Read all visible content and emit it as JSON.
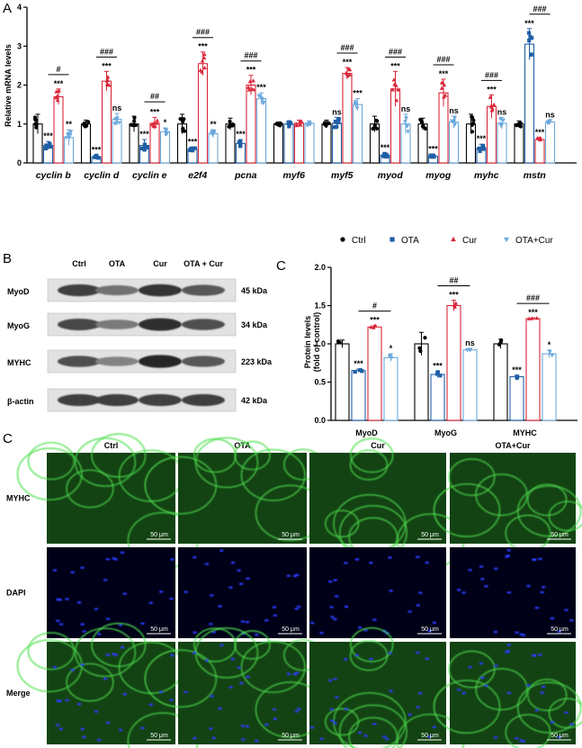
{
  "panels": {
    "A": "A",
    "B": "B",
    "C1": "C",
    "C2": "C"
  },
  "colors": {
    "Ctrl": "#000000",
    "OTA": "#1f5fa6",
    "Cur": "#d9273a",
    "OTA+Cur": "#6aa8dc"
  },
  "groups": [
    "Ctrl",
    "OTA",
    "Cur",
    "OTA+Cur"
  ],
  "legend": {
    "items": [
      "Ctrl",
      "OTA",
      "Cur",
      "OTA+Cur"
    ],
    "markers": [
      "circle",
      "square",
      "triangle",
      "triangle-down"
    ]
  },
  "chart_data": [
    {
      "type": "bar",
      "panel": "A",
      "ylabel": "Relative mRNA levels",
      "ylim": [
        0,
        4
      ],
      "yticks": [
        "0",
        "1",
        "2",
        "3",
        "4"
      ],
      "categories": [
        "cyclin b",
        "cyclin d",
        "cyclin e",
        "e2f4",
        "pcna",
        "myf6",
        "myf5",
        "myod",
        "myog",
        "myhc",
        "mstn"
      ],
      "series": [
        {
          "name": "Ctrl",
          "values": [
            1.0,
            1.0,
            1.0,
            1.0,
            1.0,
            1.0,
            1.0,
            1.0,
            1.0,
            1.0,
            1.0
          ]
        },
        {
          "name": "OTA",
          "values": [
            0.45,
            0.15,
            0.45,
            0.35,
            0.5,
            1.0,
            1.02,
            0.2,
            0.17,
            0.38,
            3.05
          ]
        },
        {
          "name": "Cur",
          "values": [
            1.7,
            2.1,
            1.02,
            2.55,
            2.0,
            1.02,
            2.3,
            1.9,
            1.8,
            1.45,
            0.6
          ]
        },
        {
          "name": "OTA+Cur",
          "values": [
            0.65,
            1.12,
            0.8,
            0.75,
            1.65,
            1.02,
            1.5,
            1.0,
            1.05,
            1.02,
            1.05
          ]
        }
      ],
      "errors": [
        [
          0.25,
          0.1,
          0.2,
          0.25,
          0.15,
          0.05,
          0.1,
          0.2,
          0.15,
          0.25,
          0.08
        ],
        [
          0.1,
          0.05,
          0.15,
          0.05,
          0.1,
          0.08,
          0.15,
          0.05,
          0.05,
          0.1,
          0.4
        ],
        [
          0.2,
          0.25,
          0.15,
          0.3,
          0.25,
          0.08,
          0.15,
          0.45,
          0.35,
          0.3,
          0.05
        ],
        [
          0.2,
          0.15,
          0.1,
          0.1,
          0.15,
          0.06,
          0.15,
          0.25,
          0.15,
          0.15,
          0.05
        ]
      ],
      "annotations": {
        "OTA": [
          "***",
          "***",
          "***",
          "***",
          "***",
          "",
          "ns",
          "***",
          "***",
          "***",
          "***"
        ],
        "Cur": [
          "***",
          "***",
          "***",
          "***",
          "***",
          "",
          "***",
          "***",
          "***",
          "***",
          "***"
        ],
        "OTA+Cur": [
          "**",
          "ns",
          "*",
          "**",
          "***",
          "",
          "***",
          "ns",
          "ns",
          "ns",
          "ns"
        ],
        "hash": [
          "#",
          "###",
          "##",
          "###",
          "###",
          "",
          "###",
          "###",
          "###",
          "###",
          "###"
        ]
      }
    },
    {
      "type": "bar",
      "panel": "C",
      "ylabel": "Protein levels",
      "ylabel2": "(fold of control)",
      "ylim": [
        0,
        2
      ],
      "yticks": [
        "0.0",
        "0.5",
        "1.0",
        "1.5",
        "2.0"
      ],
      "categories": [
        "MyoD",
        "MyoG",
        "MYHC"
      ],
      "series": [
        {
          "name": "Ctrl",
          "values": [
            1.0,
            1.0,
            1.0
          ]
        },
        {
          "name": "OTA",
          "values": [
            0.65,
            0.6,
            0.57
          ]
        },
        {
          "name": "Cur",
          "values": [
            1.22,
            1.5,
            1.33
          ]
        },
        {
          "name": "OTA+Cur",
          "values": [
            0.82,
            0.92,
            0.87
          ]
        }
      ],
      "errors": [
        [
          0.05,
          0.15,
          0.06
        ],
        [
          0.02,
          0.04,
          0.02
        ],
        [
          0.02,
          0.07,
          0.01
        ],
        [
          0.05,
          0.02,
          0.05
        ]
      ],
      "annotations": {
        "OTA": [
          "***",
          "***",
          "***"
        ],
        "Cur": [
          "***",
          "***",
          "***"
        ],
        "OTA+Cur": [
          "*",
          "ns",
          "*"
        ],
        "hash": [
          "#",
          "##",
          "###"
        ]
      }
    }
  ],
  "western": {
    "column_labels": [
      "Ctrl",
      "OTA",
      "Cur",
      "OTA + Cur"
    ],
    "rows": [
      {
        "protein": "MyoD",
        "size": "45 kDa",
        "intensity": [
          0.75,
          0.45,
          0.8,
          0.6
        ]
      },
      {
        "protein": "MyoG",
        "size": "34 kDa",
        "intensity": [
          0.7,
          0.4,
          0.85,
          0.65
        ]
      },
      {
        "protein": "MYHC",
        "size": "223 kDa",
        "intensity": [
          0.65,
          0.35,
          0.9,
          0.6
        ]
      },
      {
        "protein": "β-actin",
        "size": "42 kDa",
        "intensity": [
          0.75,
          0.75,
          0.75,
          0.75
        ]
      }
    ]
  },
  "microscopy": {
    "column_titles": [
      "Ctrl",
      "OTA",
      "Cur",
      "OTA+Cur"
    ],
    "row_labels": [
      "MYHC",
      "DAPI",
      "Merge"
    ],
    "scale_bar": "50 μm"
  }
}
